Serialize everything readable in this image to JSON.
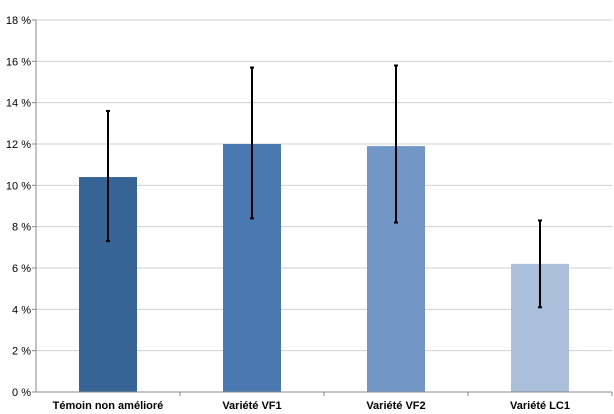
{
  "chart_data": {
    "type": "bar",
    "title": "",
    "xlabel": "",
    "ylabel": "",
    "categories": [
      "Témoin non amélioré",
      "Variété VF1",
      "Variété VF2",
      "Variété LC1"
    ],
    "values": [
      10.4,
      12.0,
      11.9,
      6.2
    ],
    "error_low": [
      7.3,
      8.4,
      8.2,
      4.1
    ],
    "error_high": [
      13.6,
      15.7,
      15.8,
      8.3
    ],
    "bar_colors": [
      "#366496",
      "#4a78b0",
      "#7297c6",
      "#a9bfda"
    ],
    "ylim": [
      0,
      18
    ],
    "yticks": [
      0,
      2,
      4,
      6,
      8,
      10,
      12,
      14,
      16,
      18
    ],
    "ytick_labels": [
      "0 %",
      "2 %",
      "4 %",
      "6 %",
      "8 %",
      "10 %",
      "12 %",
      "14 %",
      "16 %",
      "18 %"
    ],
    "grid": true,
    "grid_color": "#d0d0d0",
    "legend": "none"
  }
}
